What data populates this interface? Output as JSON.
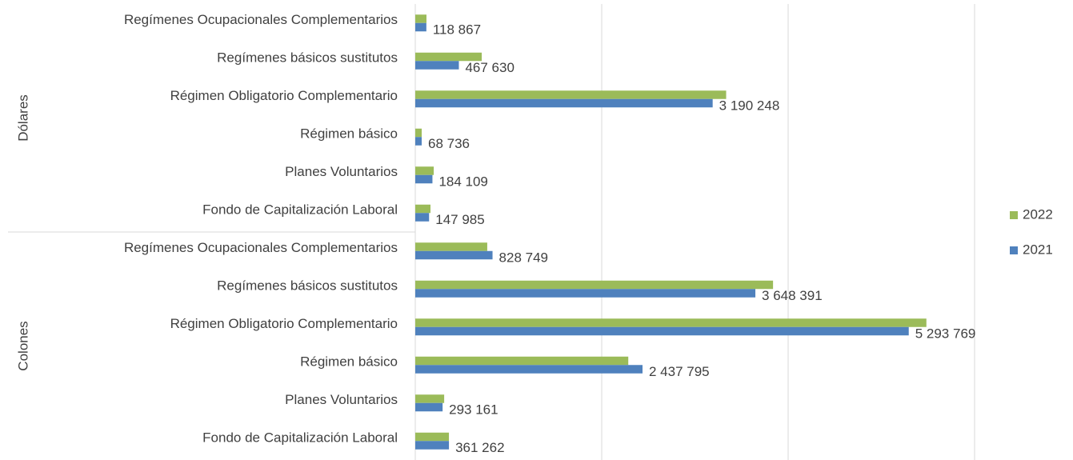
{
  "chart_data": {
    "type": "bar",
    "orientation": "horizontal",
    "groups": [
      {
        "name": "Dólares",
        "categories": [
          "Regímenes Ocupacionales Complementarios",
          "Regímenes básicos sustitutos",
          "Régimen Obligatorio Complementario",
          "Régimen básico",
          "Planes Voluntarios",
          "Fondo de Capitalización Laboral"
        ]
      },
      {
        "name": "Colones",
        "categories": [
          "Regímenes Ocupacionales Complementarios",
          "Regímenes básicos sustitutos",
          "Régimen Obligatorio Complementario",
          "Régimen básico",
          "Planes Voluntarios",
          "Fondo de Capitalización Laboral"
        ]
      }
    ],
    "series": [
      {
        "name": "2022",
        "color": "#9bbb59",
        "values": [
          120000,
          713000,
          3335000,
          69000,
          198000,
          163000,
          772000,
          3838000,
          5483000,
          2285000,
          310000,
          361000
        ]
      },
      {
        "name": "2021",
        "color": "#4f81bd",
        "values": [
          118867,
          467630,
          3190248,
          68736,
          184109,
          147985,
          828749,
          3648391,
          5293769,
          2437795,
          293161,
          361262
        ],
        "value_labels": [
          "118 867",
          "467 630",
          "3 190 248",
          "68 736",
          "184 109",
          "147 985",
          "828 749",
          "3 648 391",
          "5 293 769",
          "2 437 795",
          "293 161",
          "361 262"
        ]
      }
    ],
    "xlim": [
      0,
      6000000
    ],
    "xticks": [
      0,
      2000000,
      4000000,
      6000000
    ],
    "show_tick_labels": false,
    "grid": true,
    "legend": "right"
  }
}
